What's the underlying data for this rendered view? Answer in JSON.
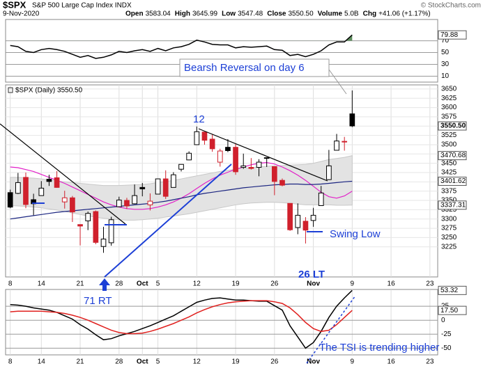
{
  "header": {
    "symbol": "$SPX",
    "name": "S&P 500 Large Cap Index INDX",
    "source": "© StockCharts.com",
    "date": "9-Nov-2020",
    "quote": [
      {
        "label": "Open",
        "value": "3583.04"
      },
      {
        "label": "High",
        "value": "3645.99"
      },
      {
        "label": "Low",
        "value": "3547.48"
      },
      {
        "label": "Close",
        "value": "3550.50"
      },
      {
        "label": "Volume",
        "value": "5.0B"
      },
      {
        "label": "Chg",
        "value": "+41.06 (+1.17%)"
      }
    ]
  },
  "chart_data": [
    {
      "type": "line",
      "annotation": "Bearsh Reversal on day 6",
      "series": [
        {
          "color": "#000000",
          "values": [
            62,
            60,
            52,
            50,
            55,
            57,
            55,
            52,
            47,
            42,
            45,
            40,
            42,
            46,
            52,
            50,
            53,
            55,
            52,
            57,
            53,
            58,
            60,
            64,
            71,
            68,
            64,
            63,
            63,
            58,
            60,
            59,
            60,
            61,
            55,
            54,
            45,
            47,
            43,
            47,
            53,
            63,
            68,
            68,
            79.88
          ]
        }
      ],
      "xlim": [
        -0.6,
        55
      ],
      "ylim": [
        0,
        106
      ],
      "yticks": [
        10,
        30,
        50,
        70
      ],
      "grid": true,
      "fill_above": 70,
      "fill_color": "#5f8f5f",
      "price_labels": [
        79.88
      ]
    },
    {
      "type": "candlestick",
      "title": "$SPX (Daily) 3550.50",
      "annotations": [
        "12",
        "71 RT",
        "26 LT",
        "Swing Low"
      ],
      "open": [
        3371,
        3369,
        3412,
        3352,
        3363,
        3407,
        3411,
        3346,
        3357,
        3285,
        3295,
        3320,
        3226,
        3236,
        3333,
        3350,
        3341,
        3385,
        3338,
        3367,
        3408,
        3385,
        3434,
        3459,
        3500,
        3534,
        3515,
        3453,
        3493,
        3493,
        3439,
        3439,
        3439,
        3464,
        3441,
        3404,
        3342,
        3277,
        3294,
        3296,
        3336,
        3406,
        3485,
        3508,
        3583.04
      ],
      "high": [
        3379,
        3424,
        3425,
        3368,
        3402,
        3419,
        3429,
        3376,
        3362,
        3285,
        3320,
        3323,
        3279,
        3306,
        3360,
        3357,
        3393,
        3397,
        3369,
        3409,
        3431,
        3426,
        3447,
        3482,
        3549,
        3534,
        3527,
        3489,
        3515,
        3502,
        3476,
        3464,
        3461,
        3466,
        3441,
        3409,
        3342,
        3342,
        3305,
        3330,
        3389,
        3486,
        3529,
        3521,
        3645.99
      ],
      "low": [
        3329,
        3367,
        3329,
        3310,
        3363,
        3389,
        3384,
        3328,
        3292,
        3229,
        3270,
        3232,
        3209,
        3228,
        3332,
        3327,
        3340,
        3361,
        3323,
        3367,
        3354,
        3385,
        3428,
        3458,
        3500,
        3500,
        3481,
        3441,
        3480,
        3419,
        3435,
        3433,
        3415,
        3440,
        3364,
        3388,
        3268,
        3259,
        3234,
        3279,
        3336,
        3405,
        3485,
        3484,
        3547.48
      ],
      "close": [
        3332,
        3398,
        3339,
        3341,
        3383,
        3401,
        3385,
        3357,
        3319,
        3281,
        3315,
        3237,
        3246,
        3298,
        3351,
        3335,
        3363,
        3381,
        3348,
        3408,
        3361,
        3419,
        3447,
        3477,
        3535,
        3512,
        3489,
        3483,
        3484,
        3427,
        3443,
        3436,
        3453,
        3465,
        3401,
        3391,
        3271,
        3310,
        3270,
        3310,
        3370,
        3443,
        3510,
        3509,
        3550.5
      ],
      "up_color": "#000000",
      "down_color": "#d0202c",
      "band": {
        "color": "#e3e3e3",
        "upper": [
          3412,
          3412,
          3411,
          3410,
          3408,
          3405,
          3402,
          3400,
          3398,
          3396,
          3394,
          3392,
          3390,
          3390,
          3390,
          3391,
          3392,
          3393,
          3395,
          3398,
          3401,
          3404,
          3408,
          3412,
          3416,
          3420,
          3424,
          3428,
          3431,
          3434,
          3436,
          3438,
          3440,
          3442,
          3443,
          3444,
          3445,
          3446,
          3447,
          3450,
          3455,
          3460,
          3463,
          3466,
          3470.68
        ],
        "lower": [
          3336,
          3335,
          3334,
          3332,
          3330,
          3327,
          3324,
          3320,
          3316,
          3312,
          3308,
          3305,
          3302,
          3300,
          3298,
          3297,
          3297,
          3298,
          3300,
          3302,
          3305,
          3308,
          3311,
          3314,
          3318,
          3322,
          3326,
          3330,
          3334,
          3338,
          3341,
          3343,
          3344,
          3345,
          3345,
          3344,
          3342,
          3340,
          3338,
          3338,
          3338,
          3338,
          3337,
          3337,
          3337.31
        ]
      },
      "overlays": [
        {
          "color": "#e21fc8",
          "values": [
            3440,
            3438,
            3433,
            3428,
            3420,
            3412,
            3404,
            3396,
            3386,
            3376,
            3366,
            3356,
            3346,
            3338,
            3332,
            3328,
            3326,
            3326,
            3328,
            3332,
            3338,
            3346,
            3356,
            3368,
            3382,
            3396,
            3408,
            3418,
            3426,
            3434,
            3440,
            3446,
            3450,
            3452,
            3448,
            3440,
            3430,
            3418,
            3404,
            3388,
            3372,
            3360,
            3356,
            3362,
            3375
          ]
        },
        {
          "color": "#1a2480",
          "values": [
            3300,
            3303,
            3306,
            3309,
            3312,
            3315,
            3318,
            3320,
            3322,
            3324,
            3326,
            3328,
            3330,
            3332,
            3334,
            3336,
            3338,
            3340,
            3342,
            3345,
            3348,
            3352,
            3356,
            3360,
            3365,
            3369,
            3372,
            3375,
            3378,
            3381,
            3384,
            3386,
            3388,
            3390,
            3392,
            3393,
            3394,
            3394,
            3393,
            3393,
            3394,
            3396,
            3398,
            3400,
            3401.62
          ]
        }
      ],
      "xlim": [
        -0.6,
        55
      ],
      "xticks": [
        {
          "value": 0,
          "label": "8"
        },
        {
          "value": 4,
          "label": "14"
        },
        {
          "value": 9,
          "label": "21"
        },
        {
          "value": 14,
          "label": "28"
        },
        {
          "value": 17,
          "label": "Oct"
        },
        {
          "value": 19,
          "label": "5"
        },
        {
          "value": 24,
          "label": "12"
        },
        {
          "value": 29,
          "label": "19"
        },
        {
          "value": 34,
          "label": "26"
        },
        {
          "value": 39,
          "label": "Nov"
        },
        {
          "value": 44,
          "label": "9"
        },
        {
          "value": 49,
          "label": "16"
        },
        {
          "value": 54,
          "label": "23"
        }
      ],
      "ylim": [
        3144,
        3661
      ],
      "yticks": [
        3225,
        3250,
        3275,
        3300,
        3325,
        3350,
        3375,
        3400,
        3425,
        3450,
        3475,
        3500,
        3525,
        3550,
        3575,
        3600,
        3625,
        3650
      ],
      "grid": true,
      "price_labels": [
        {
          "value": 3550.5,
          "label": "3550.50"
        },
        3470.68,
        3401.62,
        3337.31
      ]
    },
    {
      "type": "line",
      "annotation": "The TSI is trending higher",
      "series": [
        {
          "color": "#000000",
          "values": [
            28,
            27,
            25,
            22,
            20,
            18,
            14,
            8,
            2,
            -8,
            -16,
            -26,
            -35,
            -33,
            -28,
            -24,
            -20,
            -15,
            -10,
            -4,
            2,
            8,
            16,
            24,
            32,
            36,
            39,
            40,
            38,
            36,
            36,
            35,
            34,
            34,
            26,
            18,
            -10,
            -30,
            -50,
            -40,
            -20,
            5,
            25,
            40,
            53.32
          ]
        },
        {
          "color": "#e0201e",
          "values": [
            15,
            16,
            16,
            16,
            16,
            15,
            14,
            12,
            9,
            5,
            0,
            -6,
            -12,
            -18,
            -22,
            -24,
            -24,
            -23,
            -20,
            -16,
            -11,
            -6,
            0,
            6,
            13,
            19,
            24,
            28,
            31,
            33,
            34,
            35,
            35,
            35,
            33,
            30,
            22,
            10,
            -4,
            -15,
            -20,
            -18,
            -8,
            5,
            17.5
          ]
        }
      ],
      "xlim": [
        -0.6,
        55
      ],
      "xticks": [
        {
          "value": 0,
          "label": "8"
        },
        {
          "value": 4,
          "label": "14"
        },
        {
          "value": 9,
          "label": "21"
        },
        {
          "value": 14,
          "label": "28"
        },
        {
          "value": 17,
          "label": "Oct"
        },
        {
          "value": 19,
          "label": "5"
        },
        {
          "value": 24,
          "label": "12"
        },
        {
          "value": 29,
          "label": "19"
        },
        {
          "value": 34,
          "label": "26"
        },
        {
          "value": 39,
          "label": "Nov"
        },
        {
          "value": 44,
          "label": "9"
        },
        {
          "value": 49,
          "label": "16"
        },
        {
          "value": 54,
          "label": "23"
        }
      ],
      "ylim": [
        -62,
        55
      ],
      "yticks": [
        25,
        0,
        -25,
        -50
      ],
      "grid": true,
      "price_labels": [
        53.32,
        {
          "value": 17.5,
          "label": "17.50"
        }
      ]
    }
  ]
}
